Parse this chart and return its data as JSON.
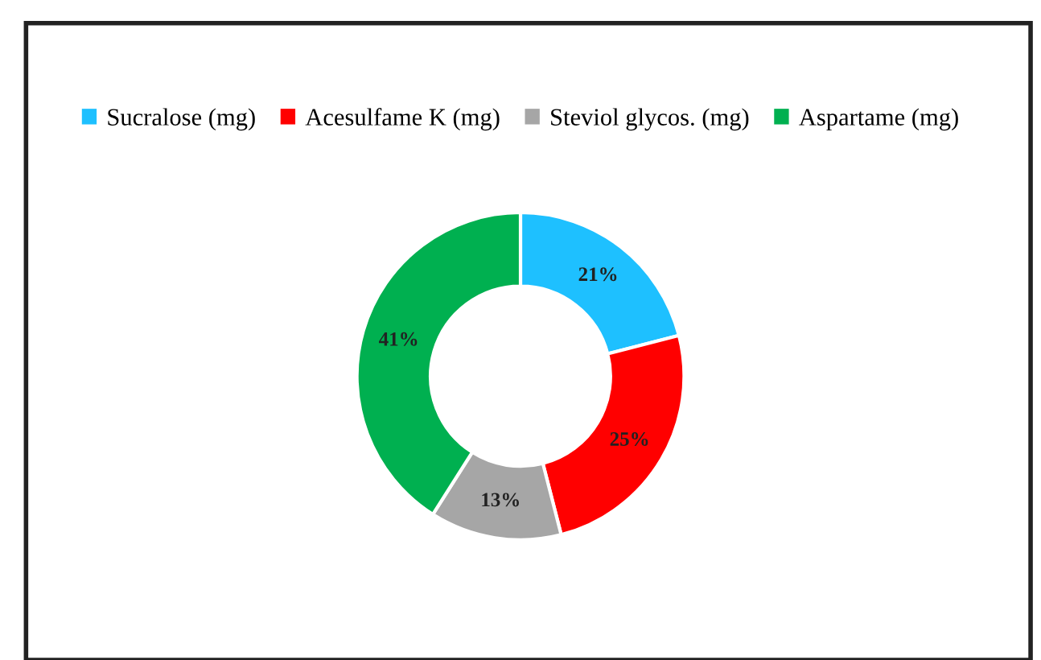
{
  "chart_data": {
    "type": "donut",
    "categories": [
      "Sucralose (mg)",
      "Acesulfame K (mg)",
      "Steviol glycos. (mg)",
      "Aspartame (mg)"
    ],
    "values": [
      21,
      25,
      13,
      41
    ],
    "colors": [
      "#1ec0ff",
      "#ff0000",
      "#a6a6a6",
      "#00b050"
    ],
    "value_labels": [
      "21%",
      "25%",
      "13%",
      "41%"
    ],
    "legend": "top"
  }
}
